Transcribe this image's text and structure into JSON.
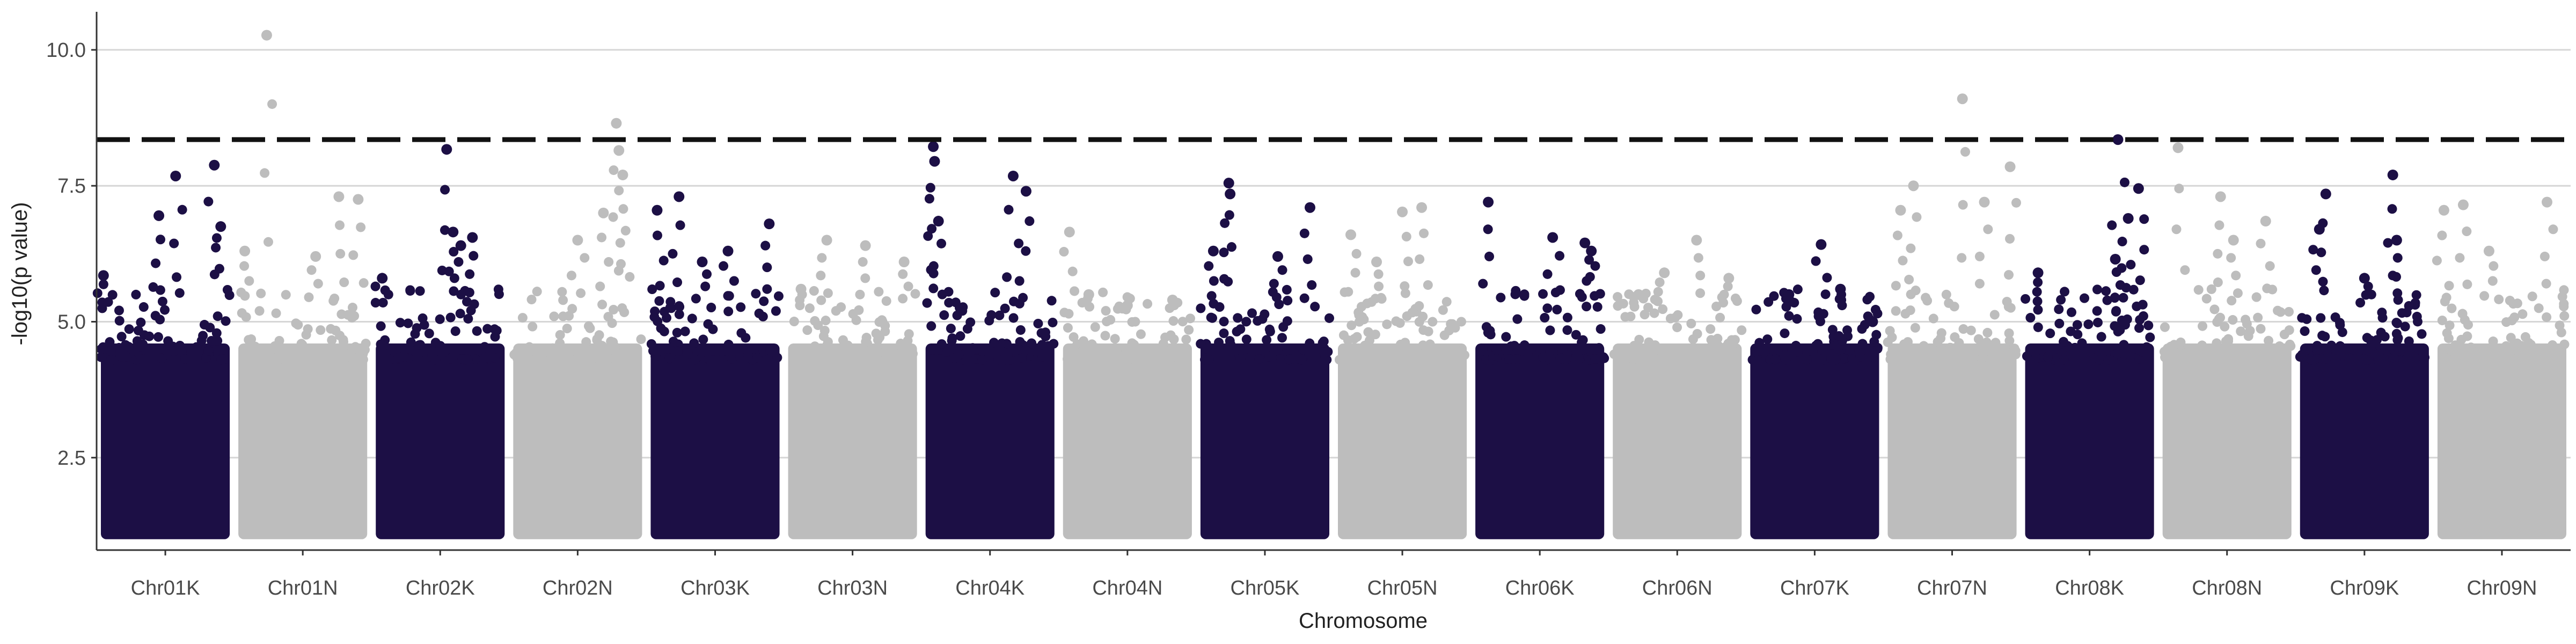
{
  "chart_data": {
    "type": "scatter",
    "xlabel": "Chromosome",
    "ylabel": "-log10(p value)",
    "ylim": [
      0.8,
      10.7
    ],
    "y_ticks": [
      2.5,
      5.0,
      7.5,
      10.0
    ],
    "y_tick_labels": [
      "2.5",
      "5.0",
      "7.5",
      "10.0"
    ],
    "grid": "horizontal major gridlines",
    "threshold": {
      "value": 8.35,
      "style": "dashed",
      "color": "#111111"
    },
    "colors": {
      "dark": "#1c0f45",
      "light": "#bdbdbd"
    },
    "chromosomes": [
      {
        "name": "Chr01K",
        "color_key": "dark",
        "peaks": [
          [
            0.58,
            7.68
          ],
          [
            0.88,
            7.88
          ],
          [
            0.45,
            6.95
          ],
          [
            0.93,
            6.75
          ],
          [
            0.02,
            5.85
          ]
        ]
      },
      {
        "name": "Chr01N",
        "color_key": "light",
        "peaks": [
          [
            0.22,
            10.27
          ],
          [
            0.78,
            7.3
          ],
          [
            0.93,
            7.25
          ],
          [
            0.05,
            6.3
          ],
          [
            0.6,
            6.2
          ]
        ]
      },
      {
        "name": "Chr02K",
        "color_key": "dark",
        "peaks": [
          [
            0.55,
            8.17
          ],
          [
            0.6,
            6.65
          ],
          [
            0.75,
            6.55
          ],
          [
            0.66,
            6.4
          ],
          [
            0.05,
            5.8
          ]
        ]
      },
      {
        "name": "Chr02N",
        "color_key": "light",
        "peaks": [
          [
            0.8,
            8.65
          ],
          [
            0.82,
            8.15
          ],
          [
            0.85,
            7.7
          ],
          [
            0.7,
            7.0
          ],
          [
            0.5,
            6.5
          ]
        ]
      },
      {
        "name": "Chr03K",
        "color_key": "dark",
        "peaks": [
          [
            0.22,
            7.3
          ],
          [
            0.05,
            7.05
          ],
          [
            0.6,
            6.3
          ],
          [
            0.92,
            6.8
          ],
          [
            0.4,
            6.1
          ]
        ]
      },
      {
        "name": "Chr03N",
        "color_key": "light",
        "peaks": [
          [
            0.3,
            6.5
          ],
          [
            0.6,
            6.4
          ],
          [
            0.9,
            6.1
          ],
          [
            0.1,
            5.6
          ]
        ]
      },
      {
        "name": "Chr04K",
        "color_key": "dark",
        "peaks": [
          [
            0.06,
            8.22
          ],
          [
            0.07,
            7.95
          ],
          [
            0.68,
            7.68
          ],
          [
            0.78,
            7.4
          ],
          [
            0.1,
            6.85
          ]
        ]
      },
      {
        "name": "Chr04N",
        "color_key": "light",
        "peaks": [
          [
            0.05,
            6.65
          ],
          [
            0.2,
            5.5
          ],
          [
            0.5,
            5.3
          ],
          [
            0.85,
            5.4
          ]
        ]
      },
      {
        "name": "Chr05K",
        "color_key": "dark",
        "peaks": [
          [
            0.22,
            7.55
          ],
          [
            0.23,
            7.35
          ],
          [
            0.85,
            7.1
          ],
          [
            0.6,
            6.2
          ],
          [
            0.1,
            6.3
          ]
        ]
      },
      {
        "name": "Chr05N",
        "color_key": "light",
        "peaks": [
          [
            0.5,
            7.02
          ],
          [
            0.65,
            7.1
          ],
          [
            0.1,
            6.6
          ],
          [
            0.3,
            6.1
          ]
        ]
      },
      {
        "name": "Chr06K",
        "color_key": "dark",
        "peaks": [
          [
            0.1,
            7.2
          ],
          [
            0.6,
            6.55
          ],
          [
            0.85,
            6.45
          ],
          [
            0.9,
            6.3
          ]
        ]
      },
      {
        "name": "Chr06N",
        "color_key": "light",
        "peaks": [
          [
            0.65,
            6.5
          ],
          [
            0.4,
            5.9
          ],
          [
            0.2,
            5.5
          ],
          [
            0.9,
            5.8
          ]
        ]
      },
      {
        "name": "Chr07K",
        "color_key": "dark",
        "peaks": [
          [
            0.55,
            6.42
          ],
          [
            0.7,
            5.6
          ],
          [
            0.3,
            5.5
          ],
          [
            0.95,
            5.0
          ]
        ]
      },
      {
        "name": "Chr07N",
        "color_key": "light",
        "peaks": [
          [
            0.58,
            9.1
          ],
          [
            0.95,
            7.85
          ],
          [
            0.2,
            7.5
          ],
          [
            0.1,
            7.05
          ],
          [
            0.75,
            7.2
          ]
        ]
      },
      {
        "name": "Chr08K",
        "color_key": "dark",
        "peaks": [
          [
            0.72,
            8.35
          ],
          [
            0.88,
            7.45
          ],
          [
            0.8,
            6.9
          ],
          [
            0.7,
            6.15
          ],
          [
            0.1,
            5.9
          ]
        ]
      },
      {
        "name": "Chr08N",
        "color_key": "light",
        "peaks": [
          [
            0.12,
            8.2
          ],
          [
            0.45,
            7.3
          ],
          [
            0.8,
            6.85
          ],
          [
            0.55,
            6.5
          ]
        ]
      },
      {
        "name": "Chr09K",
        "color_key": "dark",
        "peaks": [
          [
            0.72,
            7.7
          ],
          [
            0.2,
            7.35
          ],
          [
            0.15,
            6.7
          ],
          [
            0.75,
            6.5
          ],
          [
            0.5,
            5.8
          ]
        ]
      },
      {
        "name": "Chr09N",
        "color_key": "light",
        "peaks": [
          [
            0.2,
            7.15
          ],
          [
            0.05,
            7.05
          ],
          [
            0.85,
            7.2
          ],
          [
            0.4,
            6.3
          ]
        ]
      }
    ]
  }
}
